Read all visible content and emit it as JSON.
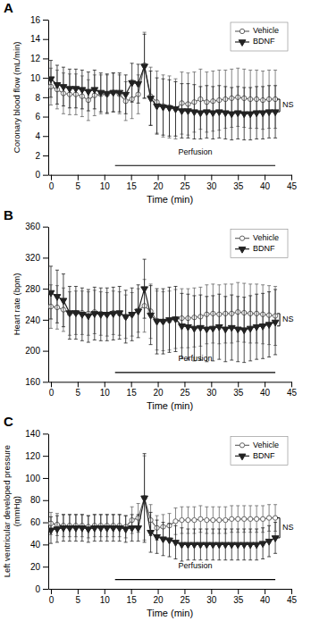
{
  "chart_data": [
    {
      "type": "line",
      "title": "A",
      "xlabel": "Time (min)",
      "ylabel": "Coronary blood flow (mL/min)",
      "x": [
        0,
        1.1666666666666667,
        2.3333333333333335,
        3.5,
        4.666666666666667,
        5.833333333333334,
        7,
        8.166666666666668,
        9.333333333333334,
        10.5,
        11.666666666666668,
        12.833333333333334,
        14,
        15.166666666666668,
        16.333333333333336,
        17.5,
        18.666666666666668,
        19.833333333333336,
        21,
        22.166666666666668,
        23.333333333333336,
        24.5,
        25.666666666666668,
        26.833333333333336,
        28,
        29.166666666666668,
        30.333333333333336,
        31.5,
        32.66666666666667,
        33.833333333333336,
        35,
        36.16666666666667,
        37.333333333333336,
        38.5,
        39.66666666666667,
        40.833333333333336,
        42
      ],
      "series": [
        {
          "name": "Vehicle",
          "color": "#666666",
          "marker": "circle-open",
          "line_style": "solid",
          "values": [
            9.1,
            8.8,
            8.4,
            8.3,
            8.3,
            8.1,
            7.7,
            8.2,
            8.3,
            8.3,
            8.5,
            8.3,
            7.6,
            7.8,
            8.3,
            11.3,
            8.1,
            7.5,
            7.1,
            7.0,
            6.8,
            7.4,
            7.3,
            7.5,
            7.8,
            7.5,
            7.6,
            7.7,
            7.8,
            7.9,
            8.0,
            7.9,
            7.8,
            7.8,
            7.7,
            7.8,
            7.8
          ],
          "errors": [
            1.9,
            2.0,
            2.1,
            2.1,
            2.1,
            2.1,
            2.1,
            2.1,
            2.0,
            2.0,
            2.0,
            2.0,
            2.0,
            2.0,
            2.0,
            3.4,
            3.0,
            3.2,
            3.2,
            3.2,
            3.1,
            3.2,
            3.2,
            3.1,
            3.1,
            3.1,
            3.1,
            3.1,
            3.0,
            3.0,
            3.0,
            3.0,
            3.0,
            3.0,
            3.0,
            3.0,
            3.0
          ]
        },
        {
          "name": "BDNF",
          "color": "#222222",
          "marker": "triangle-down",
          "line_style": "solid",
          "values": [
            9.9,
            9.3,
            9.1,
            8.9,
            8.9,
            8.8,
            8.6,
            8.8,
            8.5,
            8.4,
            8.5,
            8.5,
            8.3,
            9.5,
            9.4,
            11.2,
            7.9,
            7.1,
            7.0,
            6.9,
            6.8,
            6.6,
            6.6,
            6.5,
            6.4,
            6.5,
            6.4,
            6.5,
            6.4,
            6.3,
            6.4,
            6.3,
            6.3,
            6.4,
            6.4,
            6.5,
            6.5
          ],
          "errors": [
            1.9,
            2.0,
            2.0,
            2.0,
            2.0,
            2.0,
            2.0,
            2.0,
            2.0,
            2.0,
            2.0,
            2.0,
            2.0,
            2.0,
            2.0,
            3.3,
            2.8,
            2.9,
            2.9,
            2.9,
            2.8,
            2.8,
            2.8,
            2.8,
            2.7,
            2.7,
            2.7,
            2.7,
            2.7,
            2.7,
            2.7,
            2.7,
            2.7,
            2.7,
            2.7,
            2.7,
            2.7
          ]
        }
      ],
      "xlim": [
        -0.5,
        45
      ],
      "xticks": [
        0,
        5,
        10,
        15,
        20,
        25,
        30,
        35,
        40,
        45
      ],
      "ylim": [
        0,
        16
      ],
      "yticks": [
        0,
        2,
        4,
        6,
        8,
        10,
        12,
        14,
        16
      ],
      "legend": "upper right",
      "annotations": [
        {
          "text": "Perfusion",
          "x": [
            12,
            42
          ]
        },
        {
          "text": "NS",
          "y": [
            7.8,
            6.5
          ]
        }
      ]
    },
    {
      "type": "line",
      "title": "B",
      "xlabel": "Time (min)",
      "ylabel": "Heart rate (bpm)",
      "x": [
        0,
        1.1666666666666667,
        2.3333333333333335,
        3.5,
        4.666666666666667,
        5.833333333333334,
        7,
        8.166666666666668,
        9.333333333333334,
        10.5,
        11.666666666666668,
        12.833333333333334,
        14,
        15.166666666666668,
        16.333333333333336,
        17.5,
        18.666666666666668,
        19.833333333333336,
        21,
        22.166666666666668,
        23.333333333333336,
        24.5,
        25.666666666666668,
        26.833333333333336,
        28,
        29.166666666666668,
        30.333333333333336,
        31.5,
        32.66666666666667,
        33.833333333333336,
        35,
        36.16666666666667,
        37.333333333333336,
        38.5,
        39.66666666666667,
        40.833333333333336,
        42
      ],
      "series": [
        {
          "name": "Vehicle",
          "color": "#666666",
          "marker": "circle-open",
          "line_style": "solid",
          "values": [
            257,
            256,
            253,
            248,
            249,
            249,
            248,
            250,
            248,
            247,
            249,
            248,
            244,
            247,
            252,
            258,
            251,
            239,
            238,
            239,
            241,
            242,
            242,
            243,
            244,
            247,
            248,
            247,
            248,
            248,
            250,
            249,
            248,
            248,
            247,
            246,
            245
          ],
          "errors": [
            28,
            28,
            28,
            28,
            28,
            28,
            28,
            28,
            28,
            28,
            28,
            28,
            28,
            28,
            28,
            34,
            35,
            38,
            38,
            38,
            38,
            38,
            38,
            38,
            38,
            38,
            38,
            38,
            38,
            38,
            38,
            38,
            38,
            38,
            38,
            38,
            38
          ]
        },
        {
          "name": "BDNF",
          "color": "#222222",
          "marker": "triangle-down",
          "line_style": "solid",
          "values": [
            275,
            270,
            265,
            249,
            249,
            247,
            245,
            248,
            247,
            247,
            248,
            249,
            244,
            247,
            251,
            280,
            246,
            238,
            238,
            240,
            241,
            232,
            231,
            229,
            230,
            228,
            229,
            231,
            228,
            230,
            228,
            227,
            229,
            231,
            232,
            234,
            237
          ],
          "errors": [
            34,
            34,
            34,
            34,
            34,
            34,
            34,
            34,
            34,
            34,
            34,
            34,
            34,
            34,
            34,
            38,
            38,
            42,
            42,
            42,
            42,
            42,
            42,
            42,
            42,
            42,
            42,
            42,
            42,
            42,
            42,
            42,
            42,
            42,
            42,
            42,
            42
          ]
        }
      ],
      "xlim": [
        -0.5,
        45
      ],
      "xticks": [
        0,
        5,
        10,
        15,
        20,
        25,
        30,
        35,
        40,
        45
      ],
      "ylim": [
        160,
        360
      ],
      "yticks": [
        160,
        200,
        240,
        280,
        320,
        360
      ],
      "legend": "upper right",
      "annotations": [
        {
          "text": "Perfusion",
          "x": [
            12,
            42
          ]
        },
        {
          "text": "NS",
          "y": [
            248,
            232
          ]
        }
      ]
    },
    {
      "type": "line",
      "title": "C",
      "xlabel": "Time (min)",
      "ylabel": "Left ventricular developed pressure\n(mmHg)",
      "x": [
        0,
        1.1666666666666667,
        2.3333333333333335,
        3.5,
        4.666666666666667,
        5.833333333333334,
        7,
        8.166666666666668,
        9.333333333333334,
        10.5,
        11.666666666666668,
        12.833333333333334,
        14,
        15.166666666666668,
        16.333333333333336,
        17.5,
        18.666666666666668,
        19.833333333333336,
        21,
        22.166666666666668,
        23.333333333333336,
        24.5,
        25.666666666666668,
        26.833333333333336,
        28,
        29.166666666666668,
        30.333333333333336,
        31.5,
        32.66666666666667,
        33.833333333333336,
        35,
        36.16666666666667,
        37.333333333333336,
        38.5,
        39.66666666666667,
        40.833333333333336,
        42
      ],
      "series": [
        {
          "name": "Vehicle",
          "color": "#666666",
          "marker": "circle-open",
          "line_style": "solid",
          "values": [
            59,
            58,
            57,
            57,
            57,
            57,
            56,
            57,
            57,
            57,
            57,
            57,
            56,
            62,
            64,
            82,
            62,
            55,
            56,
            57,
            61,
            62,
            62,
            62,
            63,
            62,
            62,
            62,
            62,
            63,
            63,
            63,
            63,
            63,
            63,
            64,
            64
          ],
          "errors": [
            10,
            10,
            10,
            10,
            10,
            10,
            10,
            10,
            10,
            10,
            10,
            10,
            10,
            12,
            13,
            38,
            14,
            11,
            11,
            11,
            12,
            12,
            12,
            12,
            12,
            12,
            12,
            12,
            12,
            12,
            12,
            12,
            12,
            12,
            12,
            12,
            12
          ]
        },
        {
          "name": "BDNF",
          "color": "#222222",
          "marker": "triangle-down",
          "line_style": "solid",
          "values": [
            53,
            54,
            55,
            55,
            55,
            55,
            54,
            55,
            55,
            55,
            55,
            55,
            54,
            55,
            55,
            82,
            51,
            47,
            45,
            44,
            42,
            40,
            40,
            40,
            40,
            40,
            40,
            40,
            40,
            40,
            40,
            40,
            40,
            40,
            41,
            43,
            46
          ],
          "errors": [
            12,
            12,
            12,
            12,
            12,
            12,
            12,
            12,
            12,
            12,
            12,
            12,
            12,
            12,
            12,
            40,
            18,
            15,
            15,
            15,
            15,
            15,
            14,
            14,
            14,
            14,
            14,
            14,
            14,
            14,
            14,
            14,
            14,
            14,
            14,
            14,
            14
          ]
        }
      ],
      "xlim": [
        -0.5,
        45
      ],
      "xticks": [
        0,
        5,
        10,
        15,
        20,
        25,
        30,
        35,
        40,
        45
      ],
      "ylim": [
        0,
        140
      ],
      "yticks": [
        0,
        20,
        40,
        60,
        80,
        100,
        120,
        140
      ],
      "legend": "upper right",
      "annotations": [
        {
          "text": "Perfusion",
          "x": [
            12,
            42
          ]
        },
        {
          "text": "NS",
          "y": [
            64,
            46
          ]
        }
      ]
    }
  ]
}
